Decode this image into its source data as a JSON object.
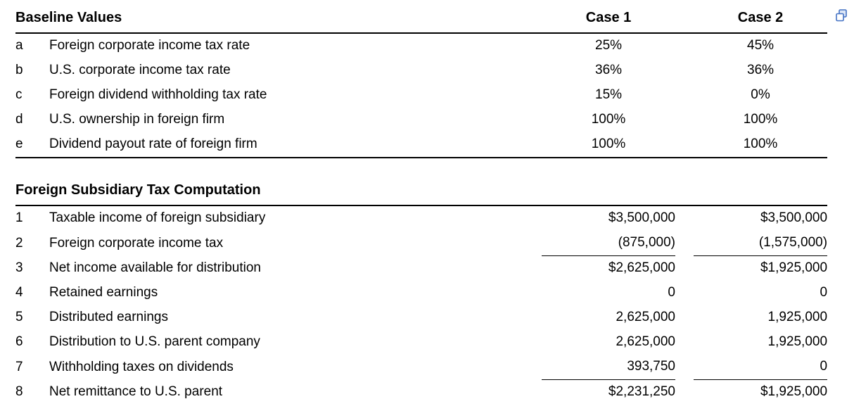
{
  "icon": {
    "name": "copy-icon",
    "color": "#4472c4"
  },
  "baseline": {
    "title": "Baseline Values",
    "columns": {
      "case1": "Case 1",
      "case2": "Case 2"
    },
    "rows": [
      {
        "id": "a",
        "label": "Foreign corporate income tax rate",
        "case1": "25%",
        "case2": "45%",
        "underline": false
      },
      {
        "id": "b",
        "label": "U.S. corporate income tax rate",
        "case1": "36%",
        "case2": "36%",
        "underline": false
      },
      {
        "id": "c",
        "label": "Foreign dividend withholding tax rate",
        "case1": "15%",
        "case2": "0%",
        "underline": false
      },
      {
        "id": "d",
        "label": "U.S. ownership in foreign firm",
        "case1": "100%",
        "case2": "100%",
        "underline": false
      },
      {
        "id": "e",
        "label": "Dividend payout rate of foreign firm",
        "case1": "100%",
        "case2": "100%",
        "underline": false
      }
    ]
  },
  "computation": {
    "title": "Foreign Subsidiary Tax Computation",
    "rows": [
      {
        "id": "1",
        "label": "Taxable income of foreign subsidiary",
        "case1": "$3,500,000",
        "case2": "$3,500,000",
        "underline": false
      },
      {
        "id": "2",
        "label": "Foreign corporate income tax",
        "case1": "(875,000)",
        "case2": "(1,575,000)",
        "underline": true
      },
      {
        "id": "3",
        "label": "Net income available for distribution",
        "case1": "$2,625,000",
        "case2": "$1,925,000",
        "underline": false
      },
      {
        "id": "4",
        "label": "Retained earnings",
        "case1": "0",
        "case2": "0",
        "underline": false
      },
      {
        "id": "5",
        "label": "Distributed earnings",
        "case1": "2,625,000",
        "case2": "1,925,000",
        "underline": false
      },
      {
        "id": "6",
        "label": "Distribution to U.S. parent company",
        "case1": "2,625,000",
        "case2": "1,925,000",
        "underline": false
      },
      {
        "id": "7",
        "label": "Withholding taxes on dividends",
        "case1": "393,750",
        "case2": "0",
        "underline": true
      },
      {
        "id": "8",
        "label": "Net remittance to U.S. parent",
        "case1": "$2,231,250",
        "case2": "$1,925,000",
        "underline": false
      }
    ]
  }
}
